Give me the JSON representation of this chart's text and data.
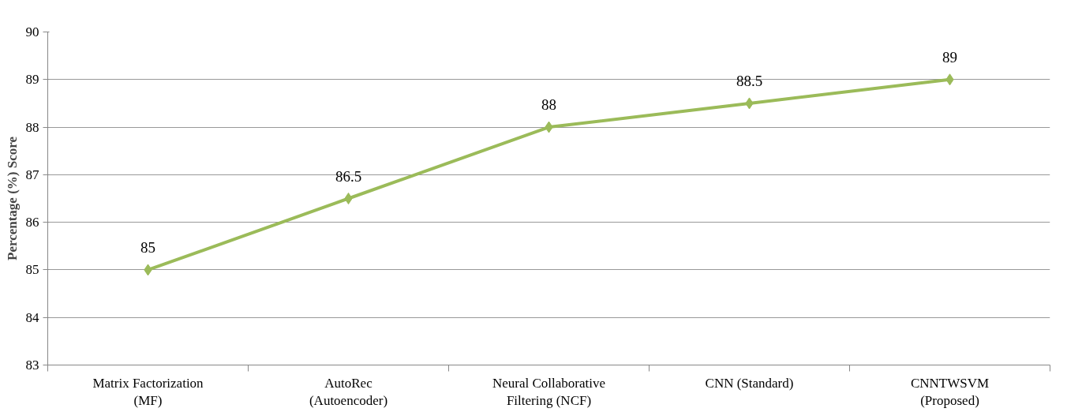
{
  "chart_data": {
    "type": "line",
    "ylabel": "Percentage (%) Score",
    "categories": [
      "Matrix Factorization\n(MF)",
      "AutoRec\n(Autoencoder)",
      "Neural Collaborative\nFiltering (NCF)",
      "CNN (Standard)",
      "CNNTWSVM\n(Proposed)"
    ],
    "series": [
      {
        "color": "#9bbb59",
        "values": [
          85,
          86.5,
          88,
          88.5,
          89
        ]
      }
    ],
    "ylim": [
      83,
      90
    ],
    "yticks": [
      83,
      84,
      85,
      86,
      87,
      88,
      89,
      90
    ],
    "grid": "y",
    "marker": "diamond",
    "line_style": "solid",
    "data_labels": true
  }
}
